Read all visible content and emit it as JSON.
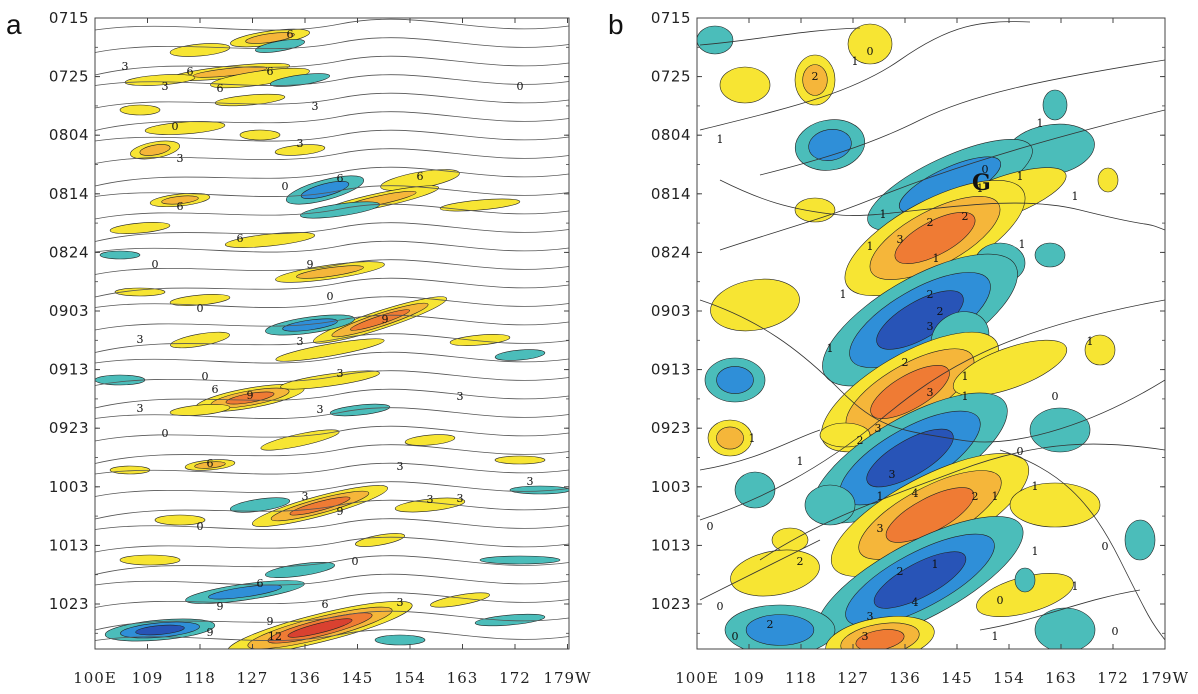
{
  "chart_data": [
    {
      "type": "contour",
      "panel_label": "a",
      "y_tick_labels": [
        "0715",
        "0725",
        "0804",
        "0814",
        "0824",
        "0903",
        "0913",
        "0923",
        "1003",
        "1013",
        "1023"
      ],
      "x_tick_labels": [
        "100E",
        "109",
        "118",
        "127",
        "136",
        "145",
        "154",
        "163",
        "172",
        "179W"
      ],
      "contour_levels": [
        -9,
        -6,
        -3,
        0,
        3,
        6,
        9,
        12
      ],
      "contour_labels": [
        "0",
        "3",
        "6",
        "9",
        "12"
      ],
      "colors": {
        "pos1": "#f7e533",
        "pos2": "#f5b63a",
        "pos3": "#ef7b34",
        "pos4": "#d94130",
        "neg1": "#4bbdba",
        "neg2": "#2f8fd8",
        "neg3": "#2854b7",
        "neg4": "#9b86d6",
        "line": "#555555"
      },
      "grid": false
    },
    {
      "type": "contour",
      "panel_label": "b",
      "y_tick_labels": [
        "0715",
        "0725",
        "0804",
        "0814",
        "0824",
        "0903",
        "0913",
        "0923",
        "1003",
        "1013",
        "1023"
      ],
      "x_tick_labels": [
        "100E",
        "109",
        "118",
        "127",
        "136",
        "145",
        "154",
        "163",
        "172",
        "179W"
      ],
      "contour_levels": [
        -4,
        -3,
        -2,
        -1,
        0,
        1,
        2,
        3,
        4
      ],
      "contour_labels": [
        "0",
        "1",
        "2",
        "3",
        "4"
      ],
      "annotations": [
        {
          "text": "G",
          "x": "~150E",
          "y": "~0812"
        }
      ],
      "colors": {
        "pos1": "#f7e533",
        "pos2": "#f5b63a",
        "pos3": "#ef7b34",
        "pos4": "#d94130",
        "neg1": "#4bbdba",
        "neg2": "#2f8fd8",
        "neg3": "#2854b7",
        "neg4": "#d98fd8",
        "line": "#333333"
      },
      "grid": false
    }
  ]
}
